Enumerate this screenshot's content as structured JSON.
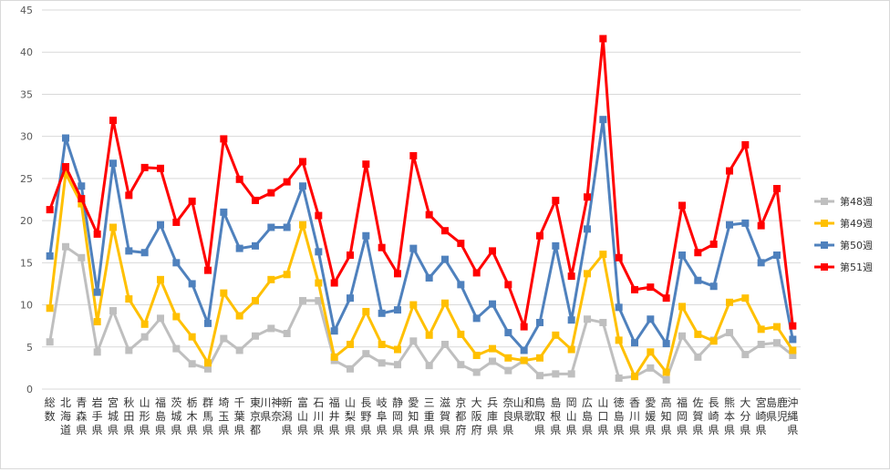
{
  "chart_data": {
    "type": "line",
    "title": "",
    "xlabel": "",
    "ylabel": "",
    "ylim": [
      0,
      45
    ],
    "yticks": [
      0,
      5,
      10,
      15,
      20,
      25,
      30,
      35,
      40,
      45
    ],
    "grid": "horizontal",
    "legend_position": "right",
    "categories": [
      "総数",
      "北海道",
      "青森県",
      "岩手県",
      "宮城県",
      "秋田県",
      "山形県",
      "福島県",
      "茨城県",
      "栃木県",
      "群馬県",
      "埼玉県",
      "千葉県",
      "東京都",
      "神奈川県",
      "新潟県",
      "富山県",
      "石川県",
      "福井県",
      "山梨県",
      "長野県",
      "岐阜県",
      "静岡県",
      "愛知県",
      "三重県",
      "滋賀県",
      "京都府",
      "大阪府",
      "兵庫県",
      "奈良県",
      "和歌山県",
      "鳥取県",
      "島根県",
      "岡山県",
      "広島県",
      "山口県",
      "徳島県",
      "香川県",
      "愛媛県",
      "高知県",
      "福岡県",
      "佐賀県",
      "長崎県",
      "熊本県",
      "大分県",
      "宮崎県",
      "鹿児島県",
      "沖縄県"
    ],
    "series": [
      {
        "name": "第48週",
        "color": "#bfbfbf",
        "marker": "square",
        "values": [
          5.6,
          16.9,
          15.6,
          4.4,
          9.3,
          4.6,
          6.2,
          8.4,
          4.8,
          3.0,
          2.4,
          6.0,
          4.6,
          6.3,
          7.2,
          6.6,
          10.5,
          10.5,
          3.4,
          2.4,
          4.2,
          3.1,
          2.9,
          5.7,
          2.8,
          5.3,
          2.9,
          2.0,
          3.3,
          2.2,
          3.4,
          1.6,
          1.8,
          1.8,
          8.3,
          7.9,
          1.3,
          1.5,
          2.5,
          1.1,
          6.3,
          3.8,
          5.8,
          6.7,
          4.1,
          5.3,
          5.5,
          4.0
        ]
      },
      {
        "name": "第49週",
        "color": "#ffc000",
        "marker": "square",
        "values": [
          9.6,
          25.6,
          22.0,
          8.0,
          19.2,
          10.7,
          7.7,
          13.0,
          8.6,
          6.2,
          3.1,
          11.4,
          8.7,
          10.5,
          13.0,
          13.6,
          19.5,
          12.6,
          3.8,
          5.3,
          9.2,
          5.3,
          4.7,
          10.0,
          6.4,
          10.2,
          6.5,
          4.0,
          4.8,
          3.7,
          3.4,
          3.7,
          6.4,
          4.7,
          13.7,
          16.0,
          5.8,
          1.5,
          4.4,
          2.0,
          9.8,
          6.5,
          5.7,
          10.3,
          10.8,
          7.1,
          7.4,
          4.6
        ]
      },
      {
        "name": "第50週",
        "color": "#4f81bd",
        "marker": "square",
        "values": [
          15.8,
          29.8,
          24.1,
          11.5,
          26.8,
          16.4,
          16.2,
          19.5,
          15.0,
          12.5,
          7.8,
          21.0,
          16.7,
          17.0,
          19.2,
          19.2,
          24.1,
          16.3,
          6.9,
          10.8,
          18.2,
          9.0,
          9.4,
          16.7,
          13.2,
          15.4,
          12.4,
          8.4,
          10.1,
          6.7,
          4.6,
          7.9,
          17.0,
          8.2,
          19.0,
          32.0,
          9.7,
          5.5,
          8.3,
          5.4,
          15.9,
          12.9,
          12.2,
          19.5,
          19.7,
          15.0,
          15.9,
          5.9
        ]
      },
      {
        "name": "第51週",
        "color": "#ff0000",
        "marker": "square",
        "values": [
          21.3,
          26.4,
          22.6,
          18.4,
          31.9,
          23.0,
          26.3,
          26.2,
          19.8,
          22.3,
          14.1,
          29.7,
          24.9,
          22.4,
          23.3,
          24.6,
          27.0,
          20.6,
          12.6,
          15.9,
          26.7,
          16.8,
          13.7,
          27.7,
          20.7,
          18.8,
          17.3,
          13.8,
          16.4,
          12.4,
          7.4,
          18.2,
          22.4,
          13.4,
          22.8,
          41.6,
          15.6,
          11.8,
          12.1,
          10.8,
          21.8,
          16.2,
          17.2,
          25.9,
          29.0,
          19.4,
          23.8,
          7.5
        ]
      }
    ]
  }
}
